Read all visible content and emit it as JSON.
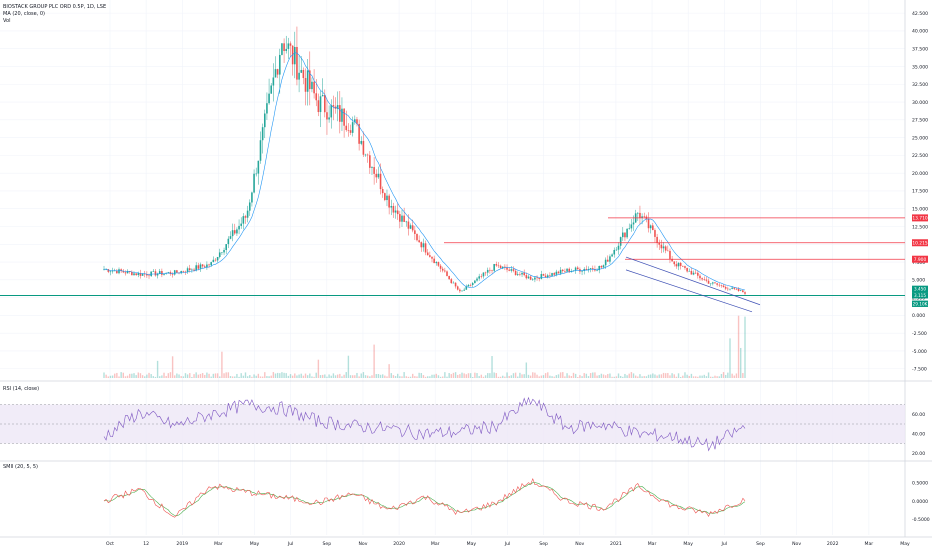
{
  "header": {
    "title": "BIOSTACK GROUP PLC ORD 0.5P, 1D, LSE",
    "indicator_1": "MA (20, close, 0)",
    "indicator_2": "Vol"
  },
  "panes": {
    "rsi_label": "RSI (14, close)",
    "smi_label": "SMII (20, 5, 5)"
  },
  "colors": {
    "up": "#26a69a",
    "down": "#ef5350",
    "ma": "#2196f3",
    "rsi": "#7e57c2",
    "rsi_band": "#ede7f6",
    "level": "#f23645",
    "support": "#089981",
    "channel": "#3f51b5",
    "smi_fast": "#ef5350",
    "smi_slow": "#4caf50",
    "grid": "#f0f3fa",
    "axis_text": "#131722"
  },
  "chart_data": [
    {
      "type": "line",
      "title": "BIOSTACK GROUP PLC ORD 0.5P, 1D, LSE",
      "y_axis_ticks": [
        "42.500",
        "40.000",
        "37.500",
        "35.000",
        "32.500",
        "30.000",
        "27.500",
        "25.000",
        "22.500",
        "20.000",
        "17.500",
        "15.000",
        "12.500",
        "10.000",
        "7.500",
        "5.000",
        "2.500",
        "0.000",
        "-2.500",
        "-5.000",
        "-7.500"
      ],
      "y_axis_tick_values": [
        42.5,
        40,
        37.5,
        35,
        32.5,
        30,
        27.5,
        25,
        22.5,
        20,
        17.5,
        15,
        12.5,
        10,
        7.5,
        5,
        2.5,
        0,
        -2.5,
        -5,
        -7.5
      ],
      "ylim": [
        -8.8,
        43.5
      ],
      "x_axis_ticks": [
        "Oct",
        "12",
        "2019",
        "Mar",
        "May",
        "Jul",
        "Sep",
        "Nov",
        "2020",
        "Mar",
        "May",
        "Jul",
        "Sep",
        "Nov",
        "2021",
        "Mar",
        "May",
        "Jul",
        "Sep",
        "Nov",
        "2022",
        "Mar",
        "May"
      ],
      "x": [
        "2018-10",
        "2018-12",
        "2019-02",
        "2019-04",
        "2019-06",
        "2019-07",
        "2019-08",
        "2019-10",
        "2019-12",
        "2020-02",
        "2020-04",
        "2020-06",
        "2020-08",
        "2020-10",
        "2020-12",
        "2021-02",
        "2021-04",
        "2021-06",
        "2021-08"
      ],
      "series": [
        {
          "values": [
            6.5,
            5.8,
            6.0,
            7.2,
            14.0,
            39.0,
            30.0,
            27.0,
            16.0,
            9.5,
            3.2,
            7.0,
            5.2,
            6.3,
            6.8,
            14.5,
            7.4,
            4.6,
            3.2
          ]
        }
      ],
      "horizontal_levels": [
        {
          "value": 13.71,
          "label": "13.710"
        },
        {
          "value": 10.215,
          "label": "10.215"
        },
        {
          "value": 7.9,
          "label": "7.900"
        }
      ],
      "price_labels": [
        {
          "value": 3.45,
          "label": "3.450"
        },
        {
          "value": 3.115,
          "label": "3.115"
        },
        {
          "value": 2.48,
          "label": "29.10K"
        }
      ],
      "support_level": 2.8
    },
    {
      "type": "line",
      "title": "RSI (14, close)",
      "y_axis_ticks": [
        "60.00",
        "40.00",
        "20.00"
      ],
      "y_axis_tick_values": [
        60,
        40,
        20
      ],
      "ylim": [
        15,
        85
      ],
      "band": [
        30,
        70
      ],
      "x": [
        "2018-10",
        "2018-12",
        "2019-02",
        "2019-04",
        "2019-06",
        "2019-07",
        "2019-08",
        "2019-10",
        "2019-12",
        "2020-02",
        "2020-04",
        "2020-06",
        "2020-08",
        "2020-10",
        "2020-12",
        "2021-02",
        "2021-04",
        "2021-06",
        "2021-08"
      ],
      "series": [
        {
          "values": [
            37,
            62,
            48,
            60,
            70,
            66,
            53,
            48,
            45,
            40,
            42,
            48,
            75,
            46,
            50,
            40,
            37,
            27,
            47
          ]
        }
      ]
    },
    {
      "type": "line",
      "title": "SMII (20, 5, 5)",
      "y_axis_ticks": [
        "0.5000",
        "0.0000",
        "-0.5000"
      ],
      "y_axis_tick_values": [
        0.5,
        0,
        -0.5
      ],
      "ylim": [
        -0.85,
        0.85
      ],
      "x": [
        "2018-10",
        "2018-12",
        "2019-02",
        "2019-04",
        "2019-06",
        "2019-07",
        "2019-08",
        "2019-10",
        "2019-12",
        "2020-02",
        "2020-04",
        "2020-06",
        "2020-08",
        "2020-10",
        "2020-12",
        "2021-02",
        "2021-04",
        "2021-06",
        "2021-08"
      ],
      "series": [
        {
          "values": [
            0.0,
            0.32,
            -0.45,
            0.42,
            0.25,
            0.1,
            -0.05,
            0.2,
            -0.25,
            0.12,
            -0.35,
            -0.05,
            0.55,
            0.0,
            -0.2,
            0.4,
            -0.15,
            -0.35,
            0.05
          ]
        }
      ]
    }
  ]
}
